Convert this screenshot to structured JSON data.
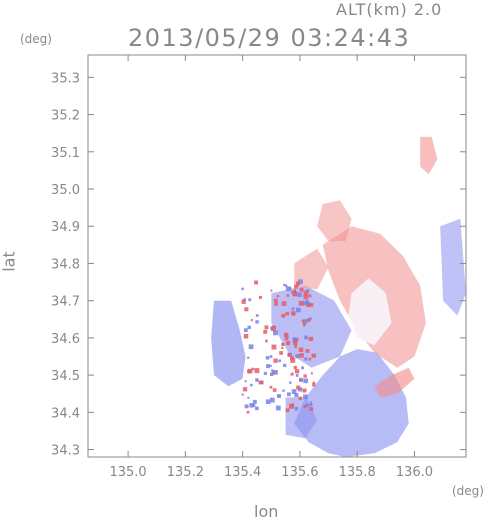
{
  "header": {
    "altitude_label": "ALT(km) 2.0",
    "timestamp": "2013/05/29 03:24:43"
  },
  "chart_data": {
    "type": "heatmap",
    "title": "2013/05/29 03:24:43",
    "subtitle": "ALT(km) 2.0",
    "xlabel": "lon",
    "ylabel": "lat",
    "x_unit": "(deg)",
    "y_unit": "(deg)",
    "xlim": [
      134.86,
      136.18
    ],
    "ylim": [
      34.28,
      35.36
    ],
    "x_ticks": [
      135.0,
      135.2,
      135.4,
      135.6,
      135.8,
      136.0
    ],
    "x_tick_labels": [
      "135.0",
      "135.2",
      "135.4",
      "135.6",
      "135.8",
      "136.0"
    ],
    "y_ticks": [
      34.3,
      34.4,
      34.5,
      34.6,
      34.7,
      34.8,
      34.9,
      35.0,
      35.1,
      35.2,
      35.3
    ],
    "y_tick_labels": [
      "34.3",
      "34.4",
      "34.5",
      "34.6",
      "34.7",
      "34.8",
      "34.9",
      "35.0",
      "35.1",
      "35.2",
      "35.3"
    ],
    "grid": false,
    "colors": {
      "negative": "#8c93f0",
      "positive": "#f28d8d",
      "neutral": "#f6f0f6",
      "axis": "#888888"
    },
    "echo_regions": [
      {
        "kind": "main-blue",
        "sign": -1,
        "intensity": 0.45,
        "poly": [
          [
            135.58,
            34.37
          ],
          [
            135.62,
            34.44
          ],
          [
            135.68,
            34.5
          ],
          [
            135.74,
            34.55
          ],
          [
            135.8,
            34.57
          ],
          [
            135.87,
            34.56
          ],
          [
            135.93,
            34.5
          ],
          [
            135.97,
            34.44
          ],
          [
            135.98,
            34.37
          ],
          [
            135.94,
            34.32
          ],
          [
            135.86,
            34.29
          ],
          [
            135.76,
            34.28
          ],
          [
            135.7,
            34.29
          ],
          [
            135.63,
            34.32
          ]
        ]
      },
      {
        "kind": "west-blue",
        "sign": -1,
        "intensity": 0.55,
        "poly": [
          [
            135.3,
            34.7
          ],
          [
            135.36,
            34.7
          ],
          [
            135.39,
            34.62
          ],
          [
            135.41,
            34.55
          ],
          [
            135.4,
            34.49
          ],
          [
            135.35,
            34.47
          ],
          [
            135.3,
            34.5
          ],
          [
            135.29,
            34.6
          ]
        ]
      },
      {
        "kind": "center-blue",
        "sign": -1,
        "intensity": 0.4,
        "poly": [
          [
            135.5,
            34.72
          ],
          [
            135.62,
            34.74
          ],
          [
            135.72,
            34.7
          ],
          [
            135.78,
            34.62
          ],
          [
            135.74,
            34.55
          ],
          [
            135.64,
            34.52
          ],
          [
            135.56,
            34.56
          ],
          [
            135.5,
            34.64
          ]
        ]
      },
      {
        "kind": "lower-left-blue",
        "sign": -1,
        "intensity": 0.4,
        "poly": [
          [
            135.55,
            34.44
          ],
          [
            135.62,
            34.44
          ],
          [
            135.66,
            34.38
          ],
          [
            135.62,
            34.33
          ],
          [
            135.55,
            34.34
          ]
        ]
      },
      {
        "kind": "east-pink",
        "sign": 1,
        "intensity": 0.4,
        "poly": [
          [
            135.68,
            34.85
          ],
          [
            135.78,
            34.9
          ],
          [
            135.88,
            34.88
          ],
          [
            135.96,
            34.82
          ],
          [
            136.02,
            34.74
          ],
          [
            136.04,
            34.64
          ],
          [
            136.0,
            34.55
          ],
          [
            135.94,
            34.52
          ],
          [
            135.86,
            34.56
          ],
          [
            135.8,
            34.62
          ],
          [
            135.74,
            34.7
          ],
          [
            135.7,
            34.78
          ]
        ]
      },
      {
        "kind": "north-pink",
        "sign": 1,
        "intensity": 0.35,
        "poly": [
          [
            135.68,
            34.96
          ],
          [
            135.74,
            34.97
          ],
          [
            135.78,
            34.92
          ],
          [
            135.76,
            34.86
          ],
          [
            135.7,
            34.86
          ],
          [
            135.66,
            34.9
          ]
        ]
      },
      {
        "kind": "northwest-pink",
        "sign": 1,
        "intensity": 0.35,
        "poly": [
          [
            135.58,
            34.8
          ],
          [
            135.66,
            34.84
          ],
          [
            135.7,
            34.79
          ],
          [
            135.66,
            34.73
          ],
          [
            135.58,
            34.74
          ]
        ]
      },
      {
        "kind": "island-pink",
        "sign": 1,
        "intensity": 0.45,
        "poly": [
          [
            136.02,
            35.14
          ],
          [
            136.06,
            35.14
          ],
          [
            136.08,
            35.08
          ],
          [
            136.05,
            35.04
          ],
          [
            136.02,
            35.06
          ]
        ]
      },
      {
        "kind": "east-edge-blue",
        "sign": -1,
        "intensity": 0.35,
        "poly": [
          [
            136.09,
            34.9
          ],
          [
            136.16,
            34.92
          ],
          [
            136.18,
            34.72
          ],
          [
            136.15,
            34.66
          ],
          [
            136.1,
            34.7
          ]
        ]
      },
      {
        "kind": "south-east-pink",
        "sign": 1,
        "intensity": 0.55,
        "poly": [
          [
            135.86,
            34.47
          ],
          [
            135.92,
            34.5
          ],
          [
            135.98,
            34.52
          ],
          [
            136.0,
            34.49
          ],
          [
            135.94,
            34.45
          ],
          [
            135.88,
            34.44
          ]
        ]
      },
      {
        "kind": "white-core",
        "sign": 0,
        "intensity": 0.0,
        "poly": [
          [
            135.78,
            34.72
          ],
          [
            135.84,
            34.76
          ],
          [
            135.9,
            34.72
          ],
          [
            135.92,
            34.64
          ],
          [
            135.86,
            34.58
          ],
          [
            135.8,
            34.6
          ],
          [
            135.77,
            34.66
          ]
        ]
      }
    ],
    "speckle_zone": [
      135.4,
      135.65,
      34.4,
      34.76
    ]
  }
}
